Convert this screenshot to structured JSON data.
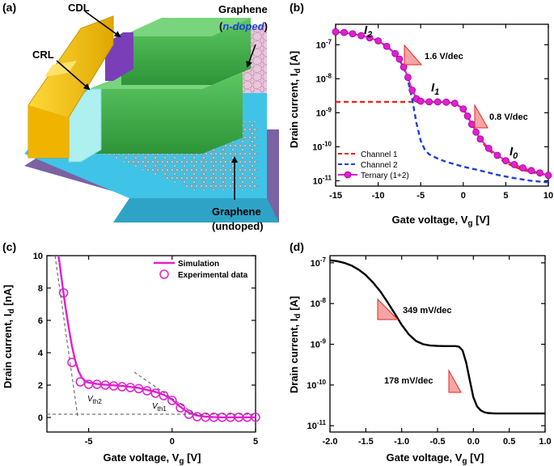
{
  "panel_a": {
    "letter": "(a)",
    "labels": {
      "cdl": "CDL",
      "crl": "CRL",
      "graphene_top": "Graphene",
      "ndoped": "n-doped",
      "ndoped_open": "(",
      "ndoped_close": ")",
      "graphene_bottom": "Graphene",
      "undoped": "(undoped)"
    },
    "colors": {
      "gold": "#f5c518",
      "purple": "#7a3fb8",
      "green": "#3aa544",
      "cyan": "#3fc4e8",
      "light_cyan": "#aef0f0",
      "dark_purple": "#8a6aa8",
      "blue_text": "#1f3fd6"
    }
  },
  "chart_data": [
    {
      "panel": "(b)",
      "type": "line",
      "xlabel": "Gate voltage, V",
      "xlabel_sub": "g",
      "xlabel_unit": " [V]",
      "ylabel": "Drain current, I",
      "ylabel_sub": "d",
      "ylabel_unit": " [A]",
      "yscale": "log",
      "xlim": [
        -15,
        10
      ],
      "ylim": [
        7e-12,
        4e-07
      ],
      "xticks": [
        -15,
        -10,
        -5,
        0,
        5,
        10
      ],
      "xtick_labels": [
        "-15",
        "-10",
        "-5",
        "0",
        "5",
        "10"
      ],
      "yticks": [
        1e-11,
        1e-10,
        1e-09,
        1e-08,
        1e-07
      ],
      "ytick_labels": [
        {
          "base": "10",
          "exp": "-11"
        },
        {
          "base": "10",
          "exp": "-10"
        },
        {
          "base": "10",
          "exp": "-9"
        },
        {
          "base": "10",
          "exp": "-8"
        },
        {
          "base": "10",
          "exp": "-7"
        }
      ],
      "legend_position": "bottom-left",
      "series": [
        {
          "name": "Channel 1",
          "color": "#e8261c",
          "style": "dashed",
          "x": [
            -15,
            -10,
            -5,
            -2,
            -1,
            0,
            0.5,
            1,
            1.5,
            2,
            3,
            4,
            5,
            6,
            7,
            8,
            9,
            10
          ],
          "y": [
            2.1e-09,
            2.1e-09,
            2.1e-09,
            2.05e-09,
            1.9e-09,
            1.3e-09,
            8e-10,
            4.5e-10,
            2.6e-10,
            1.6e-10,
            8e-11,
            5e-11,
            3.4e-11,
            2.6e-11,
            2.1e-11,
            1.8e-11,
            1.6e-11,
            1.4e-11
          ]
        },
        {
          "name": "Channel 2",
          "color": "#1f3fd6",
          "style": "dashed",
          "x": [
            -15,
            -13,
            -11,
            -10,
            -9,
            -8,
            -7,
            -6.5,
            -6,
            -5.5,
            -5,
            -4.5,
            -4,
            -3,
            -2,
            0,
            2,
            4,
            6,
            8,
            10
          ],
          "y": [
            2.4e-07,
            2.1e-07,
            1.6e-07,
            1.3e-07,
            9e-08,
            5.5e-08,
            2.2e-08,
            9e-09,
            2.5e-09,
            5e-10,
            1.5e-10,
            8e-11,
            6e-11,
            4.5e-11,
            3.6e-11,
            2.6e-11,
            2e-11,
            1.5e-11,
            1.2e-11,
            1e-11,
            9e-12
          ]
        },
        {
          "name": "Ternary (1+2)",
          "color": "#e020d0",
          "style": "solid-marker",
          "x": [
            -15,
            -14,
            -13,
            -12,
            -11,
            -10,
            -9,
            -8,
            -7.5,
            -7,
            -6.5,
            -6,
            -5.5,
            -5,
            -4,
            -3,
            -2,
            -1,
            0,
            0.5,
            1,
            1.5,
            2,
            3,
            4,
            5,
            6,
            7,
            8,
            9,
            10
          ],
          "y": [
            2.4e-07,
            2.3e-07,
            2.1e-07,
            1.85e-07,
            1.6e-07,
            1.3e-07,
            9e-08,
            5.5e-08,
            3.8e-08,
            2.2e-08,
            1.1e-08,
            4.6e-09,
            2.6e-09,
            2.2e-09,
            2.1e-09,
            2.1e-09,
            2.05e-09,
            1.9e-09,
            1.3e-09,
            8e-10,
            4.6e-10,
            2.7e-10,
            1.7e-10,
            9e-11,
            5.6e-11,
            3.9e-11,
            3e-11,
            2.4e-11,
            2e-11,
            1.7e-11,
            1.45e-11
          ]
        }
      ],
      "annotations": {
        "i2": {
          "letter": "I",
          "sub": "2"
        },
        "i1": {
          "letter": "I",
          "sub": "1"
        },
        "i0": {
          "letter": "I",
          "sub": "0"
        },
        "slope1": "1.6 V/dec",
        "slope2": "0.8 V/dec"
      }
    },
    {
      "panel": "(c)",
      "type": "scatter",
      "xlabel": "Gate voltage, V",
      "xlabel_sub": "g",
      "xlabel_unit": " [V]",
      "ylabel": "Drain current, I",
      "ylabel_sub": "d",
      "ylabel_unit": " [nA]",
      "xlim": [
        -7.5,
        5
      ],
      "ylim": [
        -0.9,
        10
      ],
      "xticks": [
        -5,
        0,
        5
      ],
      "xtick_labels": [
        "-5",
        "0",
        "5"
      ],
      "yticks": [
        0,
        2,
        4,
        6,
        8,
        10
      ],
      "ytick_labels": [
        "0",
        "2",
        "4",
        "6",
        "8",
        "10"
      ],
      "legend_position": "top-right",
      "series": [
        {
          "name": "Simulation",
          "color": "#e020d0",
          "style": "solid",
          "x": [
            -6.8,
            -6.6,
            -6.4,
            -6.2,
            -6.0,
            -5.8,
            -5.6,
            -5.4,
            -5.2,
            -5.0,
            -4.5,
            -4,
            -3,
            -2,
            -1,
            -0.5,
            0,
            0.5,
            1,
            1.5,
            2,
            2.5,
            3,
            4,
            5
          ],
          "y": [
            10,
            8.4,
            6.9,
            5.6,
            4.4,
            3.5,
            2.85,
            2.45,
            2.25,
            2.15,
            2.07,
            2.02,
            1.95,
            1.82,
            1.58,
            1.4,
            1.1,
            0.65,
            0.3,
            0.12,
            0.05,
            0.02,
            0.01,
            0.01,
            0.01
          ]
        },
        {
          "name": "Experimental data",
          "color": "#e020d0",
          "style": "open-circle",
          "x": [
            -6.5,
            -6.0,
            -5.5,
            -5.0,
            -4.5,
            -4.0,
            -3.5,
            -3.0,
            -2.5,
            -2.0,
            -1.5,
            -1.0,
            -0.5,
            0,
            0.5,
            1.0,
            1.5,
            2.0,
            2.5,
            3.0,
            3.5,
            4.0,
            4.5,
            5.0
          ],
          "y": [
            7.7,
            3.4,
            2.2,
            2.05,
            2.05,
            2.0,
            1.95,
            1.9,
            1.85,
            1.78,
            1.65,
            1.5,
            1.35,
            1.05,
            0.6,
            0.2,
            0.05,
            0.02,
            0.01,
            0.01,
            0.01,
            0.01,
            0.01,
            0.01
          ]
        }
      ],
      "annotations": {
        "vth2": {
          "letter": "V",
          "sub": "th2"
        },
        "vth1": {
          "letter": "V",
          "sub": "th1"
        }
      }
    },
    {
      "panel": "(d)",
      "type": "line",
      "xlabel": "Gate voltage, V",
      "xlabel_sub": "g",
      "xlabel_unit": " [V]",
      "ylabel": "Drain current, I",
      "ylabel_sub": "d",
      "ylabel_unit": " [A]",
      "yscale": "log",
      "xlim": [
        -2.0,
        1.0
      ],
      "ylim": [
        7e-12,
        1.5e-07
      ],
      "xticks": [
        -2.0,
        -1.5,
        -1.0,
        -0.5,
        0.0,
        0.5,
        1.0
      ],
      "xtick_labels": [
        "-2.0",
        "-1.5",
        "-1.0",
        "-0.5",
        "0.0",
        "0.5",
        "1.0"
      ],
      "yticks": [
        1e-11,
        1e-10,
        1e-09,
        1e-08,
        1e-07
      ],
      "ytick_labels": [
        {
          "base": "10",
          "exp": "-11"
        },
        {
          "base": "10",
          "exp": "-10"
        },
        {
          "base": "10",
          "exp": "-9"
        },
        {
          "base": "10",
          "exp": "-8"
        },
        {
          "base": "10",
          "exp": "-7"
        }
      ],
      "series": [
        {
          "name": "",
          "color": "#000000",
          "style": "solid",
          "x": [
            -2.0,
            -1.9,
            -1.8,
            -1.7,
            -1.6,
            -1.5,
            -1.4,
            -1.3,
            -1.2,
            -1.1,
            -1.0,
            -0.9,
            -0.8,
            -0.7,
            -0.6,
            -0.5,
            -0.4,
            -0.3,
            -0.25,
            -0.2,
            -0.15,
            -0.1,
            -0.05,
            0.0,
            0.05,
            0.1,
            0.15,
            0.2,
            0.3,
            0.4,
            0.5,
            0.7,
            1.0
          ],
          "y": [
            1.15e-07,
            1.1e-07,
            1e-07,
            8.6e-08,
            6.8e-08,
            5e-08,
            3.3e-08,
            2e-08,
            1.1e-08,
            5.8e-09,
            3e-09,
            1.75e-09,
            1.2e-09,
            1e-09,
            9.3e-10,
            9.1e-10,
            9e-10,
            9e-10,
            9e-10,
            8.7e-10,
            7e-10,
            3.5e-10,
            1.3e-10,
            5e-11,
            3e-11,
            2.4e-11,
            2.15e-11,
            2.05e-11,
            2e-11,
            2e-11,
            2e-11,
            2e-11,
            2e-11
          ]
        }
      ],
      "annotations": {
        "slope1": "349 mV/dec",
        "slope2": "178 mV/dec"
      }
    }
  ]
}
